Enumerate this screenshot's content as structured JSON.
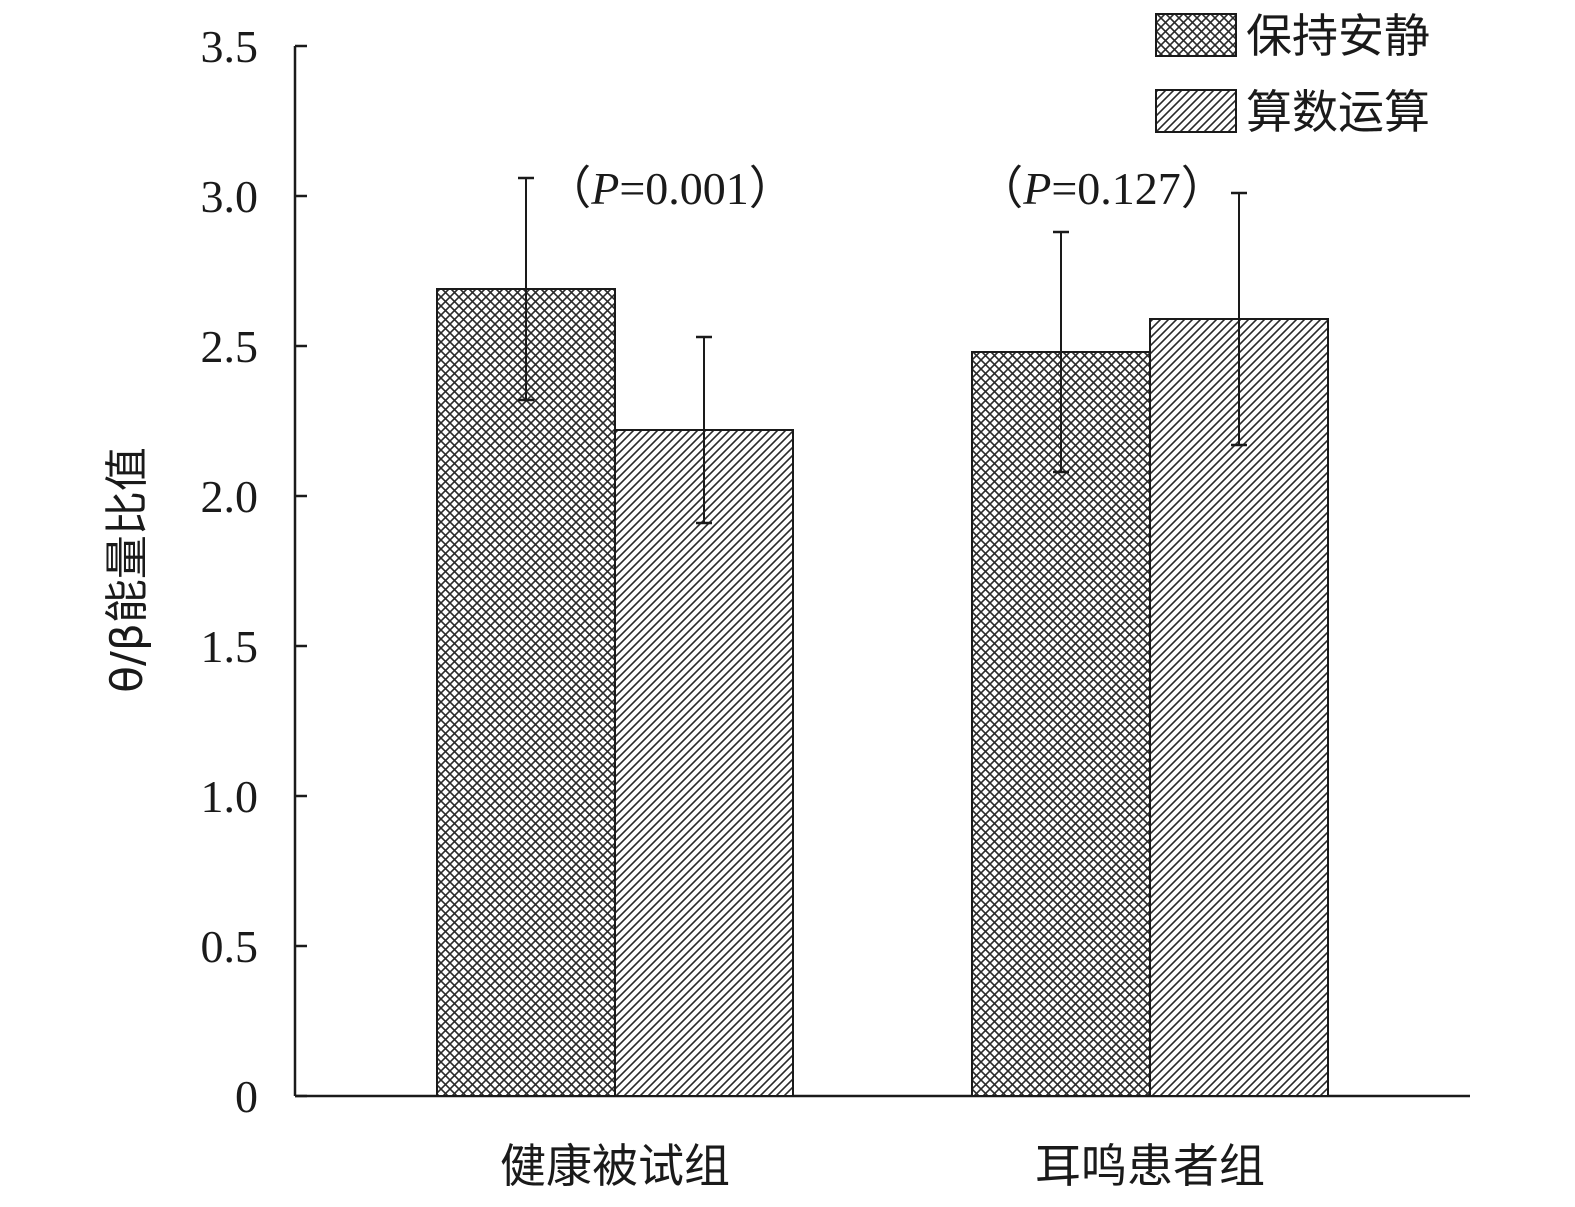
{
  "chart_data": {
    "type": "bar",
    "ylabel": "θ/β能量比值",
    "xlabel": "",
    "ylim": [
      0,
      3.5
    ],
    "yticks": [
      {
        "value": 0,
        "label": "0"
      },
      {
        "value": 0.5,
        "label": "0.5"
      },
      {
        "value": 1.0,
        "label": "1.0"
      },
      {
        "value": 1.5,
        "label": "1.5"
      },
      {
        "value": 2.0,
        "label": "2.0"
      },
      {
        "value": 2.5,
        "label": "2.5"
      },
      {
        "value": 3.0,
        "label": "3.0"
      },
      {
        "value": 3.5,
        "label": "3.5"
      }
    ],
    "categories": [
      "健康被试组",
      "耳鸣患者组"
    ],
    "series": [
      {
        "name": "保持安静",
        "pattern": "crosshatch",
        "values": [
          2.69,
          2.48
        ],
        "errors": [
          0.37,
          0.4
        ]
      },
      {
        "name": "算数运算",
        "pattern": "diagonal",
        "values": [
          2.22,
          2.59
        ],
        "errors": [
          0.31,
          0.42
        ]
      }
    ],
    "annotations": [
      {
        "category": 0,
        "value": 3.0,
        "paren_open": "（",
        "italic": "P",
        "rest": "=0.001",
        "paren_close": "）"
      },
      {
        "category": 1,
        "value": 3.0,
        "paren_open": "（",
        "italic": "P",
        "rest": "=0.127",
        "paren_close": "）"
      }
    ],
    "legend_position": "top-right",
    "grid": false
  }
}
